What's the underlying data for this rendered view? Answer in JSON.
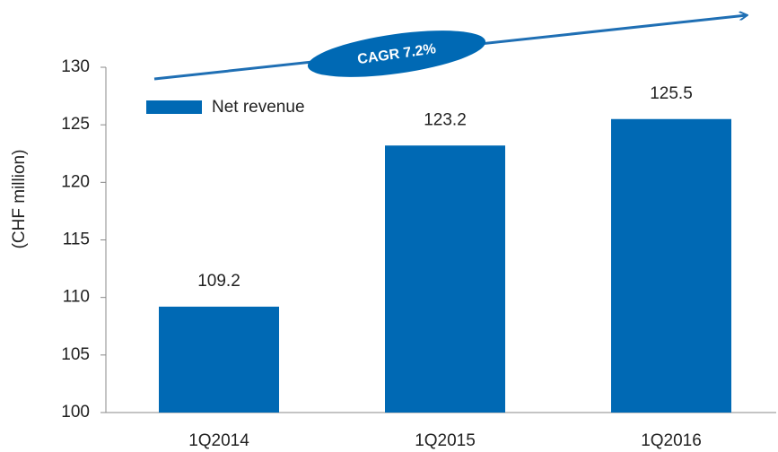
{
  "chart_data": {
    "type": "bar",
    "y_label": "(CHF million)",
    "categories": [
      "1Q2014",
      "1Q2015",
      "1Q2016"
    ],
    "series": [
      {
        "name": "Net revenue",
        "color": "#0069b4",
        "values": [
          109.2,
          123.2,
          125.5
        ]
      }
    ],
    "ylim": [
      100,
      130
    ],
    "yticks": [
      100,
      105,
      110,
      115,
      120,
      125,
      130
    ],
    "legend": "top-left",
    "annotation": "CAGR 7.2%"
  }
}
